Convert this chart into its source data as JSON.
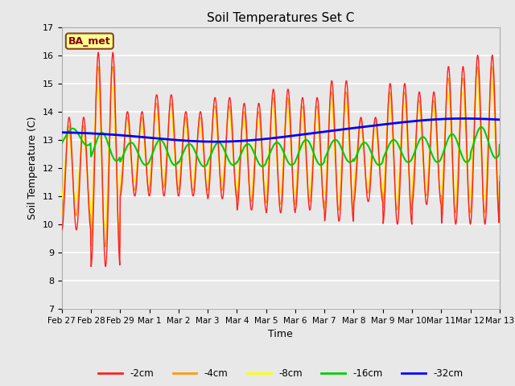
{
  "title": "Soil Temperatures Set C",
  "xlabel": "Time",
  "ylabel": "Soil Temperature (C)",
  "ylim": [
    7.0,
    17.0
  ],
  "yticks": [
    7.0,
    8.0,
    9.0,
    10.0,
    11.0,
    12.0,
    13.0,
    14.0,
    15.0,
    16.0,
    17.0
  ],
  "bg_color": "#e8e8e8",
  "plot_bg_color": "#e8e8e8",
  "grid_color": "#ffffff",
  "annotation_text": "BA_met",
  "annotation_bg": "#ffff99",
  "annotation_border": "#8B4513",
  "annotation_text_color": "#8B0000",
  "series_colors": {
    "-2cm": "#ff2020",
    "-4cm": "#ff9900",
    "-8cm": "#ffff00",
    "-16cm": "#00cc00",
    "-32cm": "#0000ff"
  },
  "legend_labels": [
    "-2cm",
    "-4cm",
    "-8cm",
    "-16cm",
    "-32cm"
  ],
  "x_tick_labels": [
    "Feb 27",
    "Feb 28",
    "Feb 29",
    "Mar 1",
    "Mar 2",
    "Mar 3",
    "Mar 4",
    "Mar 5",
    "Mar 6",
    "Mar 7",
    "Mar 8",
    "Mar 9",
    "Mar 10",
    "Mar 11",
    "Mar 12",
    "Mar 13"
  ],
  "n_points": 960,
  "n_days": 15
}
